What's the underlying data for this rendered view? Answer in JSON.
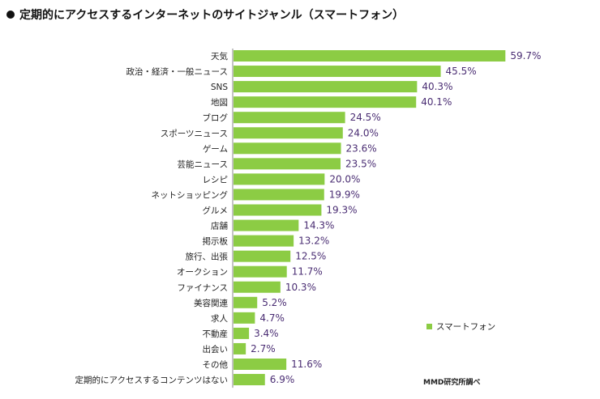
{
  "title": "定期的にアクセスするインターネットのサイトジャンル（スマートフォン）",
  "legend_label": "スマートフォン",
  "source_note": "MMD研究所調べ",
  "colors": {
    "bar": "#8ccc44",
    "value_text": "#4a2d73",
    "axis": "#888888"
  },
  "chart_data": {
    "type": "bar",
    "orientation": "horizontal",
    "categories": [
      "天気",
      "政治・経済・一般ニュース",
      "SNS",
      "地図",
      "ブログ",
      "スポーツニュース",
      "ゲーム",
      "芸能ニュース",
      "レシピ",
      "ネットショッピング",
      "グルメ",
      "店舗",
      "掲示板",
      "旅行、出張",
      "オークション",
      "ファイナンス",
      "美容関連",
      "求人",
      "不動産",
      "出会い",
      "その他",
      "定期的にアクセスするコンテンツはない"
    ],
    "series": [
      {
        "name": "スマートフォン",
        "values": [
          59.7,
          45.5,
          40.3,
          40.1,
          24.5,
          24.0,
          23.6,
          23.5,
          20.0,
          19.9,
          19.3,
          14.3,
          13.2,
          12.5,
          11.7,
          10.3,
          5.2,
          4.7,
          3.4,
          2.7,
          11.6,
          6.9
        ]
      }
    ],
    "value_labels": [
      "59.7%",
      "45.5%",
      "40.3%",
      "40.1%",
      "24.5%",
      "24.0%",
      "23.6%",
      "23.5%",
      "20.0%",
      "19.9%",
      "19.3%",
      "14.3%",
      "13.2%",
      "12.5%",
      "11.7%",
      "10.3%",
      "5.2%",
      "4.7%",
      "3.4%",
      "2.7%",
      "11.6%",
      "6.9%"
    ],
    "xlim": [
      0,
      60
    ],
    "grid": false,
    "legend_position": "bottom-right"
  }
}
